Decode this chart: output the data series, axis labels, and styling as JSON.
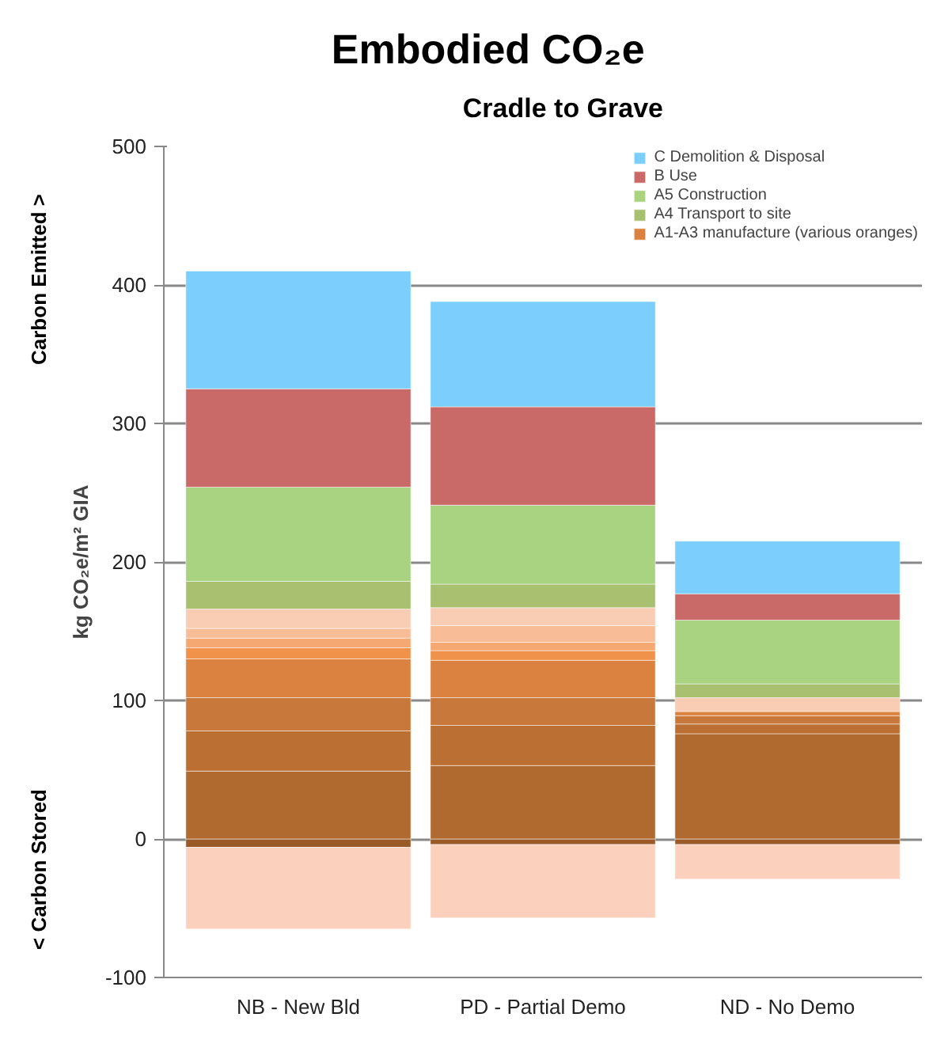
{
  "chart_data": {
    "type": "bar",
    "stacked": true,
    "title": "Embodied CO₂e",
    "subtitle": "Cradle to Grave",
    "ylabel": "kg CO₂e/m² GIA",
    "annotations": [
      "Carbon Emitted >",
      "< Carbon Stored"
    ],
    "categories": [
      "NB - New Bld",
      "PD - Partial Demo",
      "ND - No Demo"
    ],
    "ylim": [
      -100,
      500
    ],
    "yticks": [
      -100,
      0,
      100,
      200,
      300,
      400,
      500
    ],
    "grid": "y",
    "legend": "top right",
    "series": [
      {
        "color": "#9a5a28",
        "values": [
          -6,
          -4,
          -4
        ]
      },
      {
        "color": "#fbd0bc",
        "values": [
          -59,
          -53,
          -25
        ]
      },
      {
        "color": "#b06a30",
        "values": [
          49,
          53,
          76
        ]
      },
      {
        "color": "#bc6f32",
        "values": [
          29,
          29,
          7
        ]
      },
      {
        "color": "#c8783a",
        "values": [
          24,
          20,
          6
        ]
      },
      {
        "name": "A1-A3 manufacture (various oranges)",
        "color": "#dc8240",
        "values": [
          28,
          27,
          3
        ]
      },
      {
        "color": "#f0924a",
        "values": [
          8,
          7,
          null
        ]
      },
      {
        "color": "#f6a872",
        "values": [
          7,
          6,
          null
        ]
      },
      {
        "color": "#f8bc96",
        "values": [
          7,
          12,
          null
        ]
      },
      {
        "color": "#f9ccb4",
        "values": [
          14,
          13,
          10
        ]
      },
      {
        "name": "A4 Transport to site",
        "color": "#a8c070",
        "values": [
          20,
          17,
          10
        ]
      },
      {
        "name": "A5 Construction",
        "color": "#a9d381",
        "values": [
          68,
          57,
          46
        ]
      },
      {
        "name": "B Use",
        "color": "#c96a68",
        "values": [
          71,
          71,
          19
        ]
      },
      {
        "name": "C Demolition & Disposal",
        "color": "#7ccffc",
        "values": [
          85,
          76,
          38
        ]
      }
    ]
  }
}
